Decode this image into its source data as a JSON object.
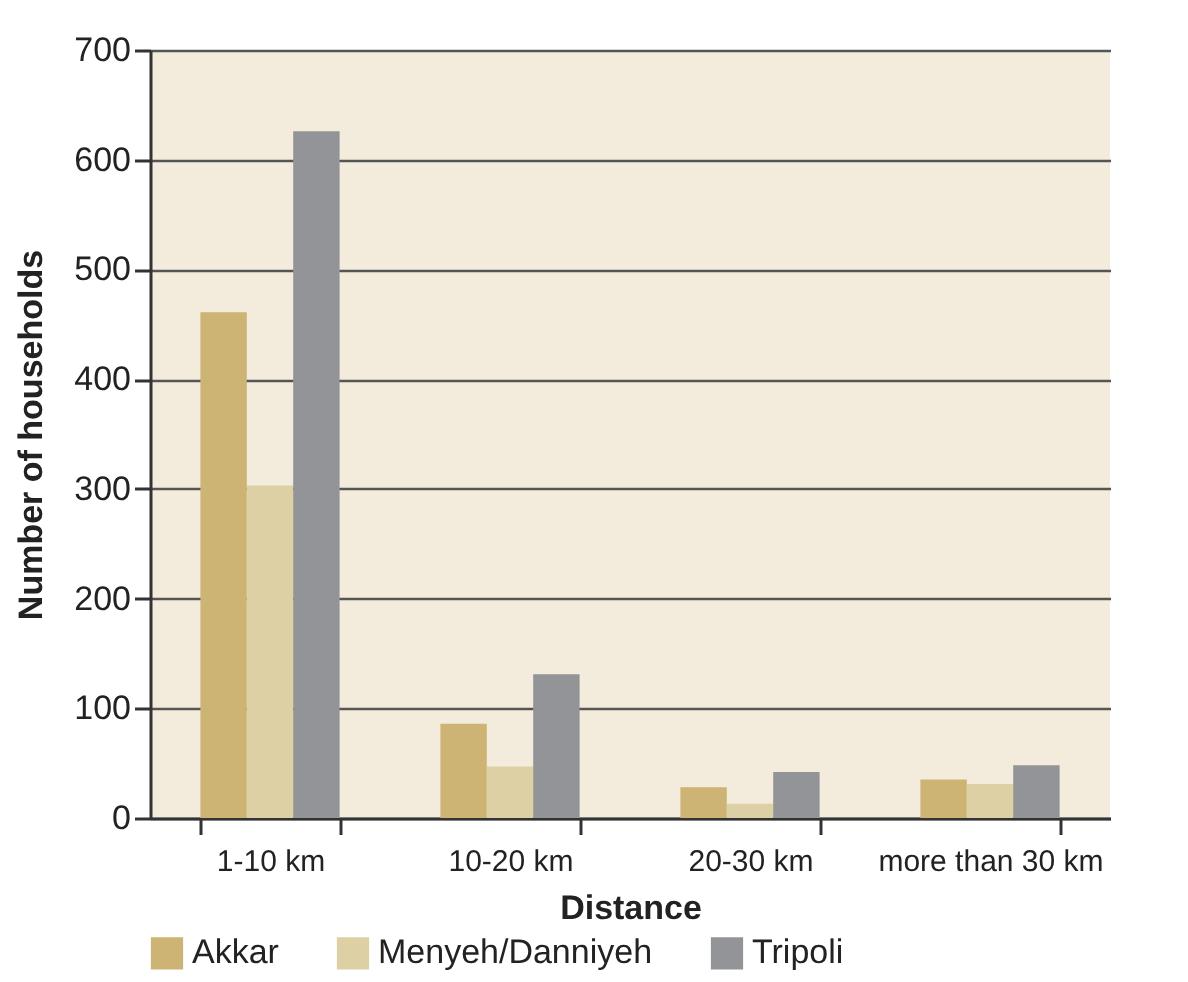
{
  "chart_data": {
    "type": "bar",
    "xlabel": "Distance",
    "ylabel": "Number of households",
    "categories": [
      "1-10 km",
      "10-20 km",
      "20-30 km",
      "more than 30 km"
    ],
    "series": [
      {
        "name": "Akkar",
        "color": "#cdb374",
        "values": [
          461,
          86,
          28,
          35
        ]
      },
      {
        "name": "Menyeh/Danniyeh",
        "color": "#ddd0a5",
        "values": [
          303,
          47,
          13,
          31
        ]
      },
      {
        "name": "Tripoli",
        "color": "#939497",
        "values": [
          626,
          131,
          42,
          48
        ]
      }
    ],
    "ylim": [
      0,
      700
    ],
    "yticks": [
      0,
      100,
      200,
      300,
      400,
      500,
      600,
      700
    ],
    "grid": "y",
    "legend": "bottom"
  }
}
